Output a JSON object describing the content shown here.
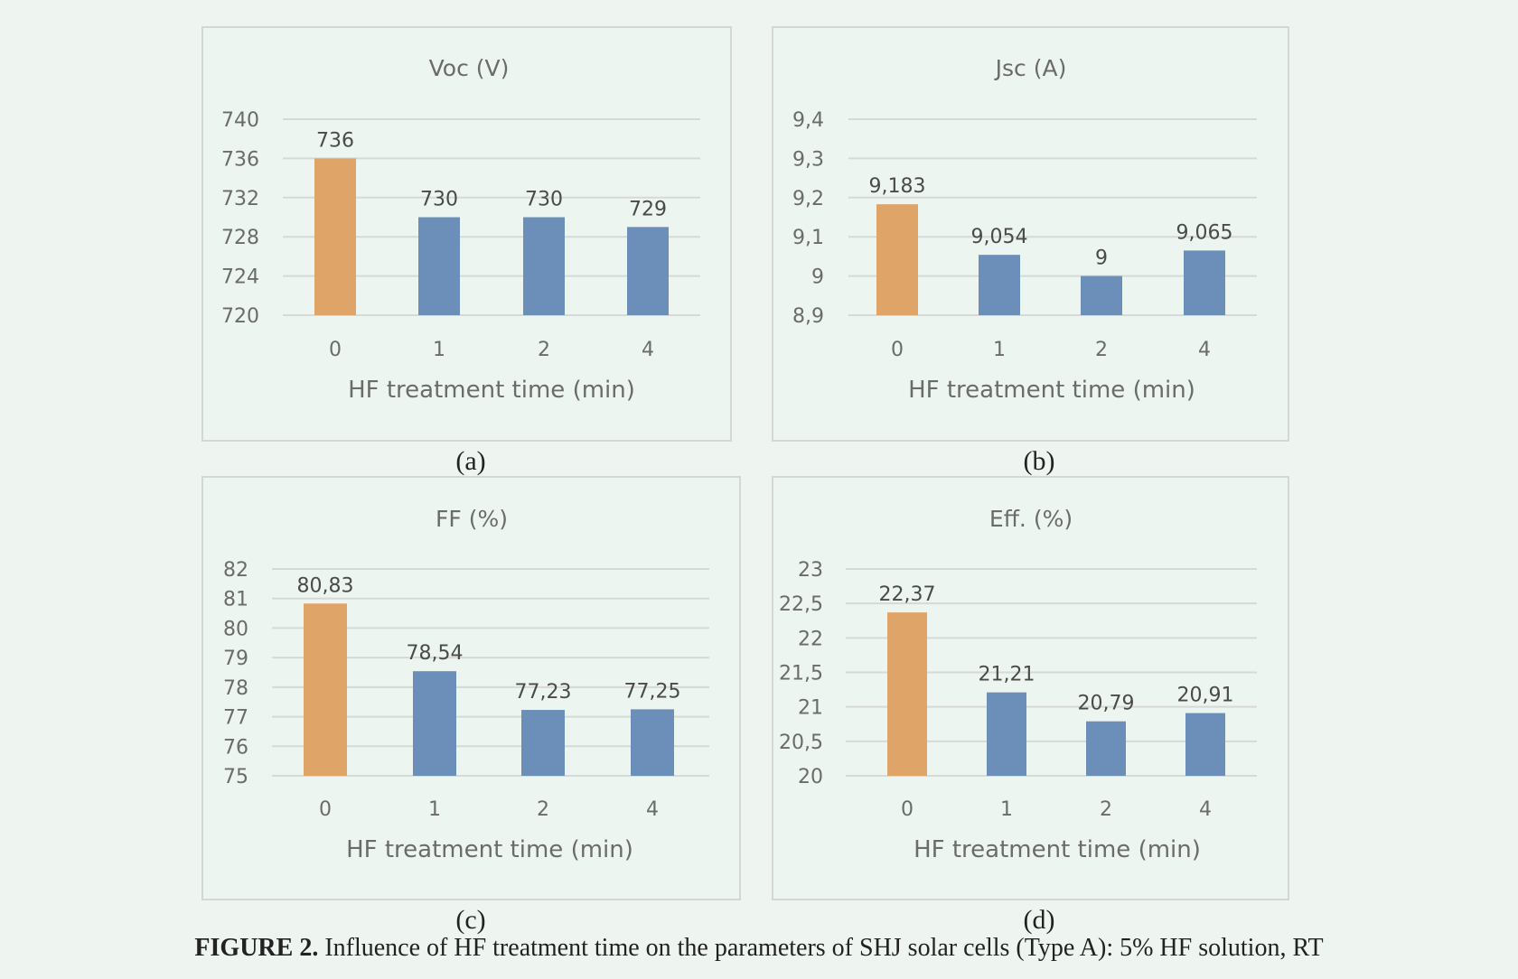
{
  "colors": {
    "highlight": "#dea468",
    "bar": "#6c8fba",
    "grid": "#d6d9d7",
    "text": "#6b6b6b"
  },
  "chart_data": [
    {
      "type": "bar",
      "title": "Voc (V)",
      "xlabel": "HF treatment time (min)",
      "ylabel": "",
      "categories": [
        "0",
        "1",
        "2",
        "4"
      ],
      "values": [
        736,
        730,
        730,
        729
      ],
      "data_labels": [
        "736",
        "730",
        "730",
        "729"
      ],
      "yticks": [
        "720",
        "724",
        "728",
        "732",
        "736",
        "740"
      ],
      "ylim": [
        720,
        740
      ],
      "grid": true,
      "legend": "none",
      "sublabel": "(a)"
    },
    {
      "type": "bar",
      "title": "Jsc (A)",
      "xlabel": "HF treatment time (min)",
      "ylabel": "",
      "categories": [
        "0",
        "1",
        "2",
        "4"
      ],
      "values": [
        9.183,
        9.054,
        9,
        9.065
      ],
      "data_labels": [
        "9,183",
        "9,054",
        "9",
        "9,065"
      ],
      "yticks": [
        "8,9",
        "9",
        "9,1",
        "9,2",
        "9,3",
        "9,4"
      ],
      "ylim": [
        8.9,
        9.4
      ],
      "grid": true,
      "legend": "none",
      "sublabel": "(b)"
    },
    {
      "type": "bar",
      "title": "FF (%)",
      "xlabel": "HF treatment time (min)",
      "ylabel": "",
      "categories": [
        "0",
        "1",
        "2",
        "4"
      ],
      "values": [
        80.83,
        78.54,
        77.23,
        77.25
      ],
      "data_labels": [
        "80,83",
        "78,54",
        "77,23",
        "77,25"
      ],
      "yticks": [
        "75",
        "76",
        "77",
        "78",
        "79",
        "80",
        "81",
        "82"
      ],
      "ylim": [
        75,
        82
      ],
      "grid": true,
      "legend": "none",
      "sublabel": "(c)"
    },
    {
      "type": "bar",
      "title": "Eff. (%)",
      "xlabel": "HF treatment time (min)",
      "ylabel": "",
      "categories": [
        "0",
        "1",
        "2",
        "4"
      ],
      "values": [
        22.37,
        21.21,
        20.79,
        20.91
      ],
      "data_labels": [
        "22,37",
        "21,21",
        "20,79",
        "20,91"
      ],
      "yticks": [
        "20",
        "20,5",
        "21",
        "21,5",
        "22",
        "22,5",
        "23"
      ],
      "ylim": [
        20,
        23
      ],
      "grid": true,
      "legend": "none",
      "sublabel": "(d)"
    }
  ],
  "caption": {
    "label": "FIGURE 2.",
    "text": " Influence of HF treatment time on the parameters of SHJ solar cells (Type A): 5% HF solution, RT"
  }
}
